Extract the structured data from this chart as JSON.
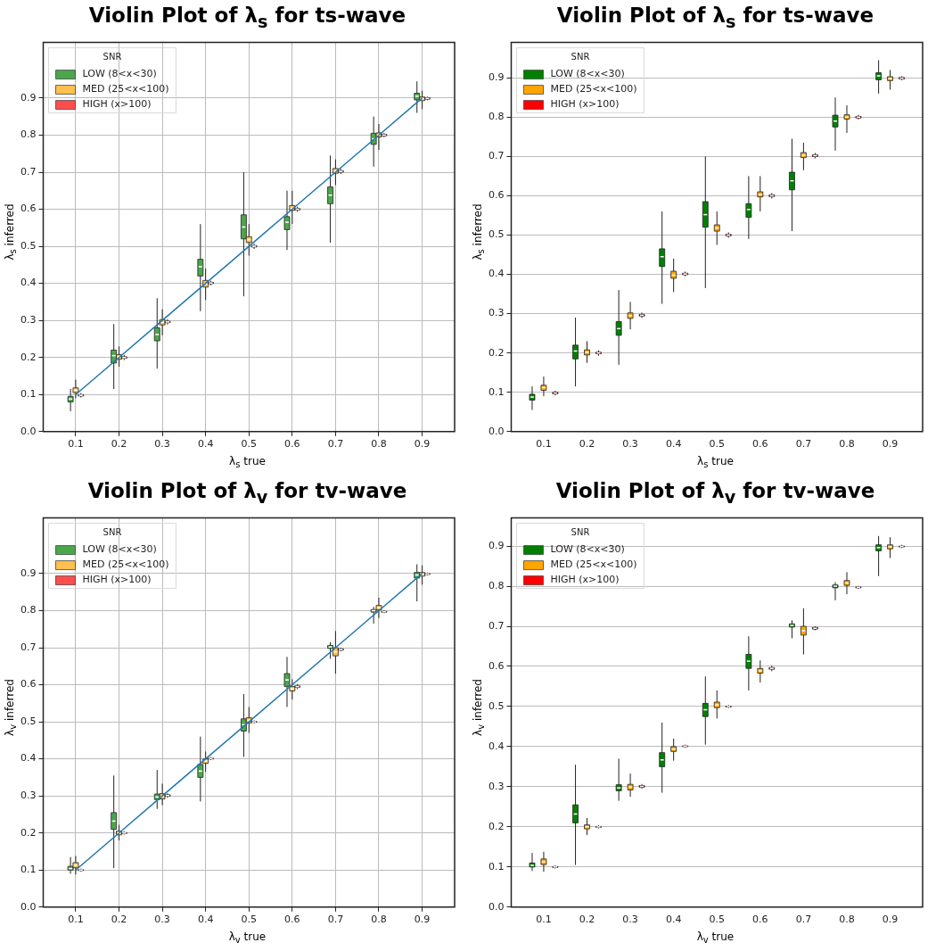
{
  "chart_data": [
    {
      "type": "box",
      "title": "Violin Plot of λ$_{s}$ for ts-wave",
      "xlabel": "λ$_{s}$ true",
      "ylabel": "λ$_{s}$ inferred",
      "legend_title": "SNR",
      "legend": "top left",
      "grid": true,
      "categories": [
        "0.1",
        "0.2",
        "0.3",
        "0.4",
        "0.5",
        "0.6",
        "0.7",
        "0.8",
        "0.9"
      ],
      "ylim": [
        0,
        1.05
      ],
      "yticks": [
        {
          "value": 0,
          "label": "0.0"
        },
        {
          "value": 0.1,
          "label": "0.1"
        },
        {
          "value": 0.2,
          "label": "0.2"
        },
        {
          "value": 0.3,
          "label": "0.3"
        },
        {
          "value": 0.4,
          "label": "0.4"
        },
        {
          "value": 0.5,
          "label": "0.5"
        },
        {
          "value": 0.6,
          "label": "0.6"
        },
        {
          "value": 0.7,
          "label": "0.7"
        },
        {
          "value": 0.8,
          "label": "0.8"
        },
        {
          "value": 0.9,
          "label": "0.9"
        }
      ],
      "series": [
        {
          "name": "LOW (8<x<30)",
          "color": "#4ca64c",
          "x": [
            "0.1",
            "0.2",
            "0.3",
            "0.4",
            "0.5",
            "0.6",
            "0.7",
            "0.8",
            "0.9"
          ],
          "boxes": [
            {
              "low": 0.055,
              "q1": 0.08,
              "median": 0.088,
              "q3": 0.095,
              "high": 0.115
            },
            {
              "low": 0.115,
              "q1": 0.185,
              "median": 0.205,
              "q3": 0.22,
              "high": 0.29
            },
            {
              "low": 0.17,
              "q1": 0.245,
              "median": 0.262,
              "q3": 0.28,
              "high": 0.36
            },
            {
              "low": 0.325,
              "q1": 0.42,
              "median": 0.445,
              "q3": 0.465,
              "high": 0.56
            },
            {
              "low": 0.365,
              "q1": 0.52,
              "median": 0.552,
              "q3": 0.585,
              "high": 0.7
            },
            {
              "low": 0.49,
              "q1": 0.545,
              "median": 0.565,
              "q3": 0.58,
              "high": 0.65
            },
            {
              "low": 0.51,
              "q1": 0.615,
              "median": 0.638,
              "q3": 0.66,
              "high": 0.745
            },
            {
              "low": 0.715,
              "q1": 0.775,
              "median": 0.79,
              "q3": 0.805,
              "high": 0.85
            },
            {
              "low": 0.86,
              "q1": 0.895,
              "median": 0.905,
              "q3": 0.913,
              "high": 0.945
            }
          ]
        },
        {
          "name": "MED (25<x<100)",
          "color": "#ffc04d",
          "x": [
            "0.1",
            "0.2",
            "0.3",
            "0.4",
            "0.5",
            "0.6",
            "0.7",
            "0.8",
            "0.9"
          ],
          "boxes": [
            {
              "low": 0.09,
              "q1": 0.105,
              "median": 0.112,
              "q3": 0.118,
              "high": 0.14
            },
            {
              "low": 0.175,
              "q1": 0.195,
              "median": 0.202,
              "q3": 0.208,
              "high": 0.23
            },
            {
              "low": 0.26,
              "q1": 0.288,
              "median": 0.295,
              "q3": 0.302,
              "high": 0.33
            },
            {
              "low": 0.355,
              "q1": 0.39,
              "median": 0.398,
              "q3": 0.408,
              "high": 0.44
            },
            {
              "low": 0.475,
              "q1": 0.51,
              "median": 0.518,
              "q3": 0.526,
              "high": 0.56
            },
            {
              "low": 0.56,
              "q1": 0.597,
              "median": 0.603,
              "q3": 0.61,
              "high": 0.65
            },
            {
              "low": 0.665,
              "q1": 0.697,
              "median": 0.703,
              "q3": 0.71,
              "high": 0.735
            },
            {
              "low": 0.76,
              "q1": 0.795,
              "median": 0.8,
              "q3": 0.806,
              "high": 0.83
            },
            {
              "low": 0.87,
              "q1": 0.893,
              "median": 0.898,
              "q3": 0.903,
              "high": 0.92
            }
          ]
        },
        {
          "name": "HIGH (x>100)",
          "color": "#ff4d4d",
          "x": [
            "0.1",
            "0.2",
            "0.3",
            "0.4",
            "0.5",
            "0.6",
            "0.7",
            "0.8",
            "0.9"
          ],
          "boxes": [
            {
              "low": 0.092,
              "q1": 0.096,
              "median": 0.098,
              "q3": 0.1,
              "high": 0.104
            },
            {
              "low": 0.193,
              "q1": 0.198,
              "median": 0.2,
              "q3": 0.202,
              "high": 0.207
            },
            {
              "low": 0.289,
              "q1": 0.294,
              "median": 0.296,
              "q3": 0.298,
              "high": 0.303
            },
            {
              "low": 0.395,
              "q1": 0.399,
              "median": 0.401,
              "q3": 0.403,
              "high": 0.407
            },
            {
              "low": 0.493,
              "q1": 0.498,
              "median": 0.5,
              "q3": 0.502,
              "high": 0.507
            },
            {
              "low": 0.593,
              "q1": 0.598,
              "median": 0.6,
              "q3": 0.602,
              "high": 0.607
            },
            {
              "low": 0.695,
              "q1": 0.7,
              "median": 0.702,
              "q3": 0.704,
              "high": 0.709
            },
            {
              "low": 0.794,
              "q1": 0.798,
              "median": 0.8,
              "q3": 0.802,
              "high": 0.806
            },
            {
              "low": 0.894,
              "q1": 0.897,
              "median": 0.899,
              "q3": 0.901,
              "high": 0.904
            }
          ]
        },
        {
          "type": "line",
          "color": "#1f77b4",
          "x": [
            "0.1",
            "0.2",
            "0.3",
            "0.4",
            "0.5",
            "0.6",
            "0.7",
            "0.8",
            "0.9"
          ],
          "values": [
            0.1,
            0.2,
            0.3,
            0.4,
            0.5,
            0.6,
            0.7,
            0.8,
            0.9
          ]
        }
      ]
    },
    {
      "type": "box",
      "title": "Violin Plot of λ$_{s}$ for ts-wave",
      "xlabel": "λ$_{s}$ true",
      "ylabel": "λ$_{s}$ inferred",
      "legend_title": "SNR",
      "legend": "top left",
      "grid": "y",
      "categories": [
        "0.1",
        "0.2",
        "0.3",
        "0.4",
        "0.5",
        "0.6",
        "0.7",
        "0.8",
        "0.9"
      ],
      "ylim": [
        0,
        0.99
      ],
      "yticks": [
        {
          "value": 0,
          "label": "0.0"
        },
        {
          "value": 0.1,
          "label": "0.1"
        },
        {
          "value": 0.2,
          "label": "0.2"
        },
        {
          "value": 0.3,
          "label": "0.3"
        },
        {
          "value": 0.4,
          "label": "0.4"
        },
        {
          "value": 0.5,
          "label": "0.5"
        },
        {
          "value": 0.6,
          "label": "0.6"
        },
        {
          "value": 0.7,
          "label": "0.7"
        },
        {
          "value": 0.8,
          "label": "0.8"
        },
        {
          "value": 0.9,
          "label": "0.9"
        }
      ],
      "series": [
        {
          "name": "LOW (8<x<30)",
          "color": "#008000",
          "boxes": [
            {
              "low": 0.055,
              "q1": 0.08,
              "median": 0.088,
              "q3": 0.095,
              "high": 0.115
            },
            {
              "low": 0.115,
              "q1": 0.185,
              "median": 0.205,
              "q3": 0.22,
              "high": 0.29
            },
            {
              "low": 0.17,
              "q1": 0.245,
              "median": 0.262,
              "q3": 0.28,
              "high": 0.36
            },
            {
              "low": 0.325,
              "q1": 0.42,
              "median": 0.445,
              "q3": 0.465,
              "high": 0.56
            },
            {
              "low": 0.365,
              "q1": 0.52,
              "median": 0.552,
              "q3": 0.585,
              "high": 0.7
            },
            {
              "low": 0.49,
              "q1": 0.545,
              "median": 0.565,
              "q3": 0.58,
              "high": 0.65
            },
            {
              "low": 0.51,
              "q1": 0.615,
              "median": 0.638,
              "q3": 0.66,
              "high": 0.745
            },
            {
              "low": 0.715,
              "q1": 0.775,
              "median": 0.79,
              "q3": 0.805,
              "high": 0.85
            },
            {
              "low": 0.86,
              "q1": 0.895,
              "median": 0.905,
              "q3": 0.913,
              "high": 0.945
            }
          ]
        },
        {
          "name": "MED (25<x<100)",
          "color": "#ffa500",
          "boxes": [
            {
              "low": 0.09,
              "q1": 0.105,
              "median": 0.112,
              "q3": 0.118,
              "high": 0.14
            },
            {
              "low": 0.175,
              "q1": 0.195,
              "median": 0.202,
              "q3": 0.208,
              "high": 0.23
            },
            {
              "low": 0.26,
              "q1": 0.288,
              "median": 0.295,
              "q3": 0.302,
              "high": 0.33
            },
            {
              "low": 0.355,
              "q1": 0.39,
              "median": 0.398,
              "q3": 0.408,
              "high": 0.44
            },
            {
              "low": 0.475,
              "q1": 0.51,
              "median": 0.518,
              "q3": 0.526,
              "high": 0.56
            },
            {
              "low": 0.56,
              "q1": 0.597,
              "median": 0.603,
              "q3": 0.61,
              "high": 0.65
            },
            {
              "low": 0.665,
              "q1": 0.697,
              "median": 0.703,
              "q3": 0.71,
              "high": 0.735
            },
            {
              "low": 0.76,
              "q1": 0.795,
              "median": 0.8,
              "q3": 0.806,
              "high": 0.83
            },
            {
              "low": 0.87,
              "q1": 0.893,
              "median": 0.898,
              "q3": 0.903,
              "high": 0.92
            }
          ]
        },
        {
          "name": "HIGH (x>100)",
          "color": "#ff0000",
          "boxes": [
            {
              "low": 0.092,
              "q1": 0.096,
              "median": 0.098,
              "q3": 0.1,
              "high": 0.104
            },
            {
              "low": 0.193,
              "q1": 0.198,
              "median": 0.2,
              "q3": 0.202,
              "high": 0.207
            },
            {
              "low": 0.289,
              "q1": 0.294,
              "median": 0.296,
              "q3": 0.298,
              "high": 0.303
            },
            {
              "low": 0.395,
              "q1": 0.399,
              "median": 0.401,
              "q3": 0.403,
              "high": 0.407
            },
            {
              "low": 0.493,
              "q1": 0.498,
              "median": 0.5,
              "q3": 0.502,
              "high": 0.507
            },
            {
              "low": 0.593,
              "q1": 0.598,
              "median": 0.6,
              "q3": 0.602,
              "high": 0.607
            },
            {
              "low": 0.695,
              "q1": 0.7,
              "median": 0.702,
              "q3": 0.704,
              "high": 0.709
            },
            {
              "low": 0.794,
              "q1": 0.798,
              "median": 0.8,
              "q3": 0.802,
              "high": 0.806
            },
            {
              "low": 0.894,
              "q1": 0.897,
              "median": 0.899,
              "q3": 0.901,
              "high": 0.904
            }
          ]
        }
      ]
    },
    {
      "type": "box",
      "title": "Violin Plot of λ$_{v}$ for tv-wave",
      "xlabel": "λ$_{v}$ true",
      "ylabel": "λ$_{v}$ inferred",
      "legend_title": "SNR",
      "legend": "top left",
      "grid": true,
      "categories": [
        "0.1",
        "0.2",
        "0.3",
        "0.4",
        "0.5",
        "0.6",
        "0.7",
        "0.8",
        "0.9"
      ],
      "ylim": [
        0,
        1.05
      ],
      "yticks": [
        {
          "value": 0,
          "label": "0.0"
        },
        {
          "value": 0.1,
          "label": "0.1"
        },
        {
          "value": 0.2,
          "label": "0.2"
        },
        {
          "value": 0.3,
          "label": "0.3"
        },
        {
          "value": 0.4,
          "label": "0.4"
        },
        {
          "value": 0.5,
          "label": "0.5"
        },
        {
          "value": 0.6,
          "label": "0.6"
        },
        {
          "value": 0.7,
          "label": "0.7"
        },
        {
          "value": 0.8,
          "label": "0.8"
        },
        {
          "value": 0.9,
          "label": "0.9"
        }
      ],
      "series": [
        {
          "name": "LOW (8<x<30)",
          "color": "#4ca64c",
          "x": [
            "0.1",
            "0.2",
            "0.3",
            "0.4",
            "0.5",
            "0.6",
            "0.7",
            "0.8",
            "0.9"
          ],
          "boxes": [
            {
              "low": 0.09,
              "q1": 0.1,
              "median": 0.104,
              "q3": 0.11,
              "high": 0.135
            },
            {
              "low": 0.105,
              "q1": 0.21,
              "median": 0.232,
              "q3": 0.255,
              "high": 0.355
            },
            {
              "low": 0.265,
              "q1": 0.29,
              "median": 0.297,
              "q3": 0.305,
              "high": 0.37
            },
            {
              "low": 0.285,
              "q1": 0.35,
              "median": 0.367,
              "q3": 0.385,
              "high": 0.46
            },
            {
              "low": 0.405,
              "q1": 0.475,
              "median": 0.492,
              "q3": 0.508,
              "high": 0.575
            },
            {
              "low": 0.54,
              "q1": 0.595,
              "median": 0.613,
              "q3": 0.63,
              "high": 0.675
            },
            {
              "low": 0.67,
              "q1": 0.698,
              "median": 0.702,
              "q3": 0.706,
              "high": 0.715
            },
            {
              "low": 0.765,
              "q1": 0.796,
              "median": 0.8,
              "q3": 0.803,
              "high": 0.81
            },
            {
              "low": 0.825,
              "q1": 0.888,
              "median": 0.896,
              "q3": 0.903,
              "high": 0.925
            }
          ]
        },
        {
          "name": "MED (25<x<100)",
          "color": "#ffc04d",
          "x": [
            "0.1",
            "0.2",
            "0.3",
            "0.4",
            "0.5",
            "0.6",
            "0.7",
            "0.8",
            "0.9"
          ],
          "boxes": [
            {
              "low": 0.088,
              "q1": 0.106,
              "median": 0.113,
              "q3": 0.12,
              "high": 0.138
            },
            {
              "low": 0.18,
              "q1": 0.195,
              "median": 0.2,
              "q3": 0.205,
              "high": 0.222
            },
            {
              "low": 0.275,
              "q1": 0.292,
              "median": 0.299,
              "q3": 0.306,
              "high": 0.333
            },
            {
              "low": 0.365,
              "q1": 0.388,
              "median": 0.394,
              "q3": 0.4,
              "high": 0.42
            },
            {
              "low": 0.47,
              "q1": 0.497,
              "median": 0.504,
              "q3": 0.511,
              "high": 0.54
            },
            {
              "low": 0.56,
              "q1": 0.583,
              "median": 0.589,
              "q3": 0.595,
              "high": 0.615
            },
            {
              "low": 0.63,
              "q1": 0.678,
              "median": 0.689,
              "q3": 0.7,
              "high": 0.745
            },
            {
              "low": 0.78,
              "q1": 0.802,
              "median": 0.808,
              "q3": 0.814,
              "high": 0.835
            },
            {
              "low": 0.87,
              "q1": 0.893,
              "median": 0.898,
              "q3": 0.903,
              "high": 0.922
            }
          ]
        },
        {
          "name": "HIGH (x>100)",
          "color": "#ff4d4d",
          "x": [
            "0.1",
            "0.2",
            "0.3",
            "0.4",
            "0.5",
            "0.6",
            "0.7",
            "0.8",
            "0.9"
          ],
          "boxes": [
            {
              "low": 0.096,
              "q1": 0.099,
              "median": 0.1,
              "q3": 0.101,
              "high": 0.104
            },
            {
              "low": 0.196,
              "q1": 0.199,
              "median": 0.2,
              "q3": 0.201,
              "high": 0.204
            },
            {
              "low": 0.295,
              "q1": 0.299,
              "median": 0.301,
              "q3": 0.303,
              "high": 0.307
            },
            {
              "low": 0.397,
              "q1": 0.4,
              "median": 0.401,
              "q3": 0.402,
              "high": 0.405
            },
            {
              "low": 0.496,
              "q1": 0.499,
              "median": 0.5,
              "q3": 0.501,
              "high": 0.504
            },
            {
              "low": 0.588,
              "q1": 0.593,
              "median": 0.595,
              "q3": 0.597,
              "high": 0.602
            },
            {
              "low": 0.69,
              "q1": 0.693,
              "median": 0.695,
              "q3": 0.697,
              "high": 0.7
            },
            {
              "low": 0.793,
              "q1": 0.796,
              "median": 0.797,
              "q3": 0.798,
              "high": 0.801
            },
            {
              "low": 0.895,
              "q1": 0.898,
              "median": 0.899,
              "q3": 0.9,
              "high": 0.903
            }
          ]
        },
        {
          "type": "line",
          "color": "#1f77b4",
          "x": [
            "0.1",
            "0.2",
            "0.3",
            "0.4",
            "0.5",
            "0.6",
            "0.7",
            "0.8",
            "0.9"
          ],
          "values": [
            0.1,
            0.2,
            0.3,
            0.4,
            0.5,
            0.6,
            0.7,
            0.8,
            0.9
          ]
        }
      ]
    },
    {
      "type": "box",
      "title": "Violin Plot of λ$_{v}$ for tv-wave",
      "xlabel": "λ$_{v}$ true",
      "ylabel": "λ$_{v}$ inferred",
      "legend_title": "SNR",
      "legend": "top left",
      "grid": "y",
      "categories": [
        "0.1",
        "0.2",
        "0.3",
        "0.4",
        "0.5",
        "0.6",
        "0.7",
        "0.8",
        "0.9"
      ],
      "ylim": [
        0,
        0.97
      ],
      "yticks": [
        {
          "value": 0,
          "label": "0.0"
        },
        {
          "value": 0.1,
          "label": "0.1"
        },
        {
          "value": 0.2,
          "label": "0.2"
        },
        {
          "value": 0.3,
          "label": "0.3"
        },
        {
          "value": 0.4,
          "label": "0.4"
        },
        {
          "value": 0.5,
          "label": "0.5"
        },
        {
          "value": 0.6,
          "label": "0.6"
        },
        {
          "value": 0.7,
          "label": "0.7"
        },
        {
          "value": 0.8,
          "label": "0.8"
        },
        {
          "value": 0.9,
          "label": "0.9"
        }
      ],
      "series": [
        {
          "name": "LOW (8<x<30)",
          "color": "#008000",
          "boxes": [
            {
              "low": 0.09,
              "q1": 0.1,
              "median": 0.104,
              "q3": 0.11,
              "high": 0.135
            },
            {
              "low": 0.105,
              "q1": 0.21,
              "median": 0.232,
              "q3": 0.255,
              "high": 0.355
            },
            {
              "low": 0.265,
              "q1": 0.29,
              "median": 0.297,
              "q3": 0.305,
              "high": 0.37
            },
            {
              "low": 0.285,
              "q1": 0.35,
              "median": 0.367,
              "q3": 0.385,
              "high": 0.46
            },
            {
              "low": 0.405,
              "q1": 0.475,
              "median": 0.492,
              "q3": 0.508,
              "high": 0.575
            },
            {
              "low": 0.54,
              "q1": 0.595,
              "median": 0.613,
              "q3": 0.63,
              "high": 0.675
            },
            {
              "low": 0.67,
              "q1": 0.698,
              "median": 0.702,
              "q3": 0.706,
              "high": 0.715
            },
            {
              "low": 0.765,
              "q1": 0.796,
              "median": 0.8,
              "q3": 0.803,
              "high": 0.81
            },
            {
              "low": 0.825,
              "q1": 0.888,
              "median": 0.896,
              "q3": 0.903,
              "high": 0.925
            }
          ]
        },
        {
          "name": "MED (25<x<100)",
          "color": "#ffa500",
          "boxes": [
            {
              "low": 0.088,
              "q1": 0.106,
              "median": 0.113,
              "q3": 0.12,
              "high": 0.138
            },
            {
              "low": 0.18,
              "q1": 0.195,
              "median": 0.2,
              "q3": 0.205,
              "high": 0.222
            },
            {
              "low": 0.275,
              "q1": 0.292,
              "median": 0.299,
              "q3": 0.306,
              "high": 0.333
            },
            {
              "low": 0.365,
              "q1": 0.388,
              "median": 0.394,
              "q3": 0.4,
              "high": 0.42
            },
            {
              "low": 0.47,
              "q1": 0.497,
              "median": 0.504,
              "q3": 0.511,
              "high": 0.54
            },
            {
              "low": 0.56,
              "q1": 0.583,
              "median": 0.589,
              "q3": 0.595,
              "high": 0.615
            },
            {
              "low": 0.63,
              "q1": 0.678,
              "median": 0.689,
              "q3": 0.7,
              "high": 0.745
            },
            {
              "low": 0.78,
              "q1": 0.802,
              "median": 0.808,
              "q3": 0.814,
              "high": 0.835
            },
            {
              "low": 0.87,
              "q1": 0.893,
              "median": 0.898,
              "q3": 0.903,
              "high": 0.922
            }
          ]
        },
        {
          "name": "HIGH (x>100)",
          "color": "#ff0000",
          "boxes": [
            {
              "low": 0.096,
              "q1": 0.099,
              "median": 0.1,
              "q3": 0.101,
              "high": 0.104
            },
            {
              "low": 0.196,
              "q1": 0.199,
              "median": 0.2,
              "q3": 0.201,
              "high": 0.204
            },
            {
              "low": 0.295,
              "q1": 0.299,
              "median": 0.301,
              "q3": 0.303,
              "high": 0.307
            },
            {
              "low": 0.397,
              "q1": 0.4,
              "median": 0.401,
              "q3": 0.402,
              "high": 0.405
            },
            {
              "low": 0.496,
              "q1": 0.499,
              "median": 0.5,
              "q3": 0.501,
              "high": 0.504
            },
            {
              "low": 0.588,
              "q1": 0.593,
              "median": 0.595,
              "q3": 0.597,
              "high": 0.602
            },
            {
              "low": 0.69,
              "q1": 0.693,
              "median": 0.695,
              "q3": 0.697,
              "high": 0.7
            },
            {
              "low": 0.793,
              "q1": 0.796,
              "median": 0.797,
              "q3": 0.798,
              "high": 0.801
            },
            {
              "low": 0.895,
              "q1": 0.898,
              "median": 0.899,
              "q3": 0.9,
              "high": 0.903
            }
          ]
        }
      ]
    }
  ]
}
